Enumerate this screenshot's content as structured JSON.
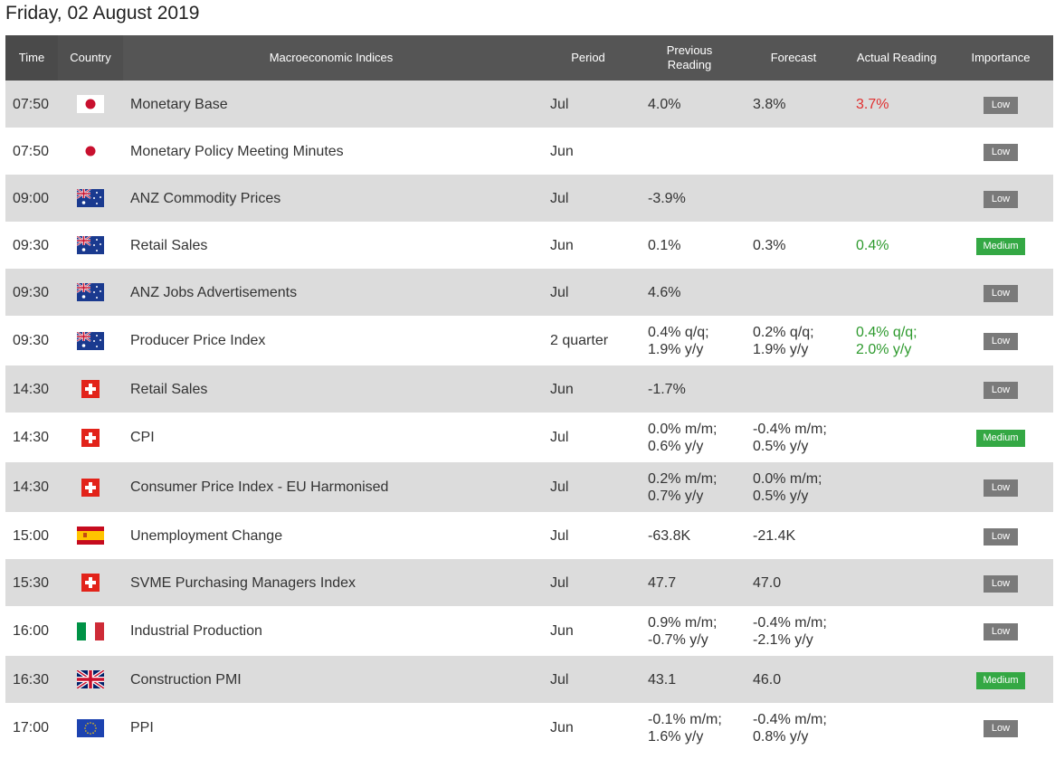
{
  "page": {
    "date_title": "Friday, 02 August 2019"
  },
  "table": {
    "headers": {
      "time": "Time",
      "country": "Country",
      "indices": "Macroeconomic Indices",
      "period": "Period",
      "previous": "Previous Reading",
      "forecast": "Forecast",
      "actual": "Actual Reading",
      "importance": "Importance"
    },
    "rows": [
      {
        "time": "07:50",
        "country": "japan-flag-icon",
        "name": "Monetary Base",
        "period": "Jul",
        "previous": "4.0%",
        "forecast": "3.8%",
        "actual": "3.7%",
        "actual_trend": "neg",
        "importance": "Low"
      },
      {
        "time": "07:50",
        "country": "japan-flag-icon",
        "name": "Monetary Policy Meeting Minutes",
        "period": "Jun",
        "previous": "",
        "forecast": "",
        "actual": "",
        "actual_trend": "",
        "importance": "Low"
      },
      {
        "time": "09:00",
        "country": "australia-flag-icon",
        "name": "ANZ Commodity Prices",
        "period": "Jul",
        "previous": "-3.9%",
        "forecast": "",
        "actual": "",
        "actual_trend": "",
        "importance": "Low"
      },
      {
        "time": "09:30",
        "country": "australia-flag-icon",
        "name": "Retail Sales",
        "period": "Jun",
        "previous": "0.1%",
        "forecast": "0.3%",
        "actual": "0.4%",
        "actual_trend": "pos",
        "importance": "Medium"
      },
      {
        "time": "09:30",
        "country": "australia-flag-icon",
        "name": "ANZ Jobs Advertisements",
        "period": "Jul",
        "previous": "4.6%",
        "forecast": "",
        "actual": "",
        "actual_trend": "",
        "importance": "Low"
      },
      {
        "time": "09:30",
        "country": "australia-flag-icon",
        "name": "Producer Price Index",
        "period": "2 quarter",
        "previous": [
          "0.4% q/q;",
          "1.9% y/y"
        ],
        "forecast": [
          "0.2% q/q;",
          "1.9% y/y"
        ],
        "actual": [
          "0.4% q/q;",
          "2.0% y/y"
        ],
        "actual_trend": "pos",
        "importance": "Low"
      },
      {
        "time": "14:30",
        "country": "switzerland-flag-icon",
        "name": "Retail Sales",
        "period": "Jun",
        "previous": "-1.7%",
        "forecast": "",
        "actual": "",
        "actual_trend": "",
        "importance": "Low"
      },
      {
        "time": "14:30",
        "country": "switzerland-flag-icon",
        "name": "CPI",
        "period": "Jul",
        "previous": [
          "0.0% m/m;",
          "0.6% y/y"
        ],
        "forecast": [
          "-0.4% m/m;",
          "0.5% y/y"
        ],
        "actual": "",
        "actual_trend": "",
        "importance": "Medium"
      },
      {
        "time": "14:30",
        "country": "switzerland-flag-icon",
        "name": "Consumer Price Index - EU Harmonised",
        "period": "Jul",
        "previous": [
          "0.2% m/m;",
          "0.7% y/y"
        ],
        "forecast": [
          "0.0% m/m;",
          "0.5% y/y"
        ],
        "actual": "",
        "actual_trend": "",
        "importance": "Low"
      },
      {
        "time": "15:00",
        "country": "spain-flag-icon",
        "name": "Unemployment Change",
        "period": "Jul",
        "previous": "-63.8K",
        "forecast": "-21.4K",
        "actual": "",
        "actual_trend": "",
        "importance": "Low"
      },
      {
        "time": "15:30",
        "country": "switzerland-flag-icon",
        "name": "SVME Purchasing Managers Index",
        "period": "Jul",
        "previous": "47.7",
        "forecast": "47.0",
        "actual": "",
        "actual_trend": "",
        "importance": "Low"
      },
      {
        "time": "16:00",
        "country": "italy-flag-icon",
        "name": "Industrial Production",
        "period": "Jun",
        "previous": [
          "0.9% m/m;",
          "-0.7% y/y"
        ],
        "forecast": [
          "-0.4% m/m;",
          "-2.1% y/y"
        ],
        "actual": "",
        "actual_trend": "",
        "importance": "Low"
      },
      {
        "time": "16:30",
        "country": "uk-flag-icon",
        "name": "Construction PMI",
        "period": "Jul",
        "previous": "43.1",
        "forecast": "46.0",
        "actual": "",
        "actual_trend": "",
        "importance": "Medium"
      },
      {
        "time": "17:00",
        "country": "eu-flag-icon",
        "name": "PPI",
        "period": "Jun",
        "previous": [
          "-0.1% m/m;",
          "1.6% y/y"
        ],
        "forecast": [
          "-0.4% m/m;",
          "0.8% y/y"
        ],
        "actual": "",
        "actual_trend": "",
        "importance": "Low"
      }
    ]
  },
  "colors": {
    "header_bg": "#555555",
    "row_alt": "#dcdcdc",
    "positive": "#2e9a2e",
    "negative": "#e03030",
    "badge_low": "#7a7a7a",
    "badge_medium": "#34a844"
  }
}
